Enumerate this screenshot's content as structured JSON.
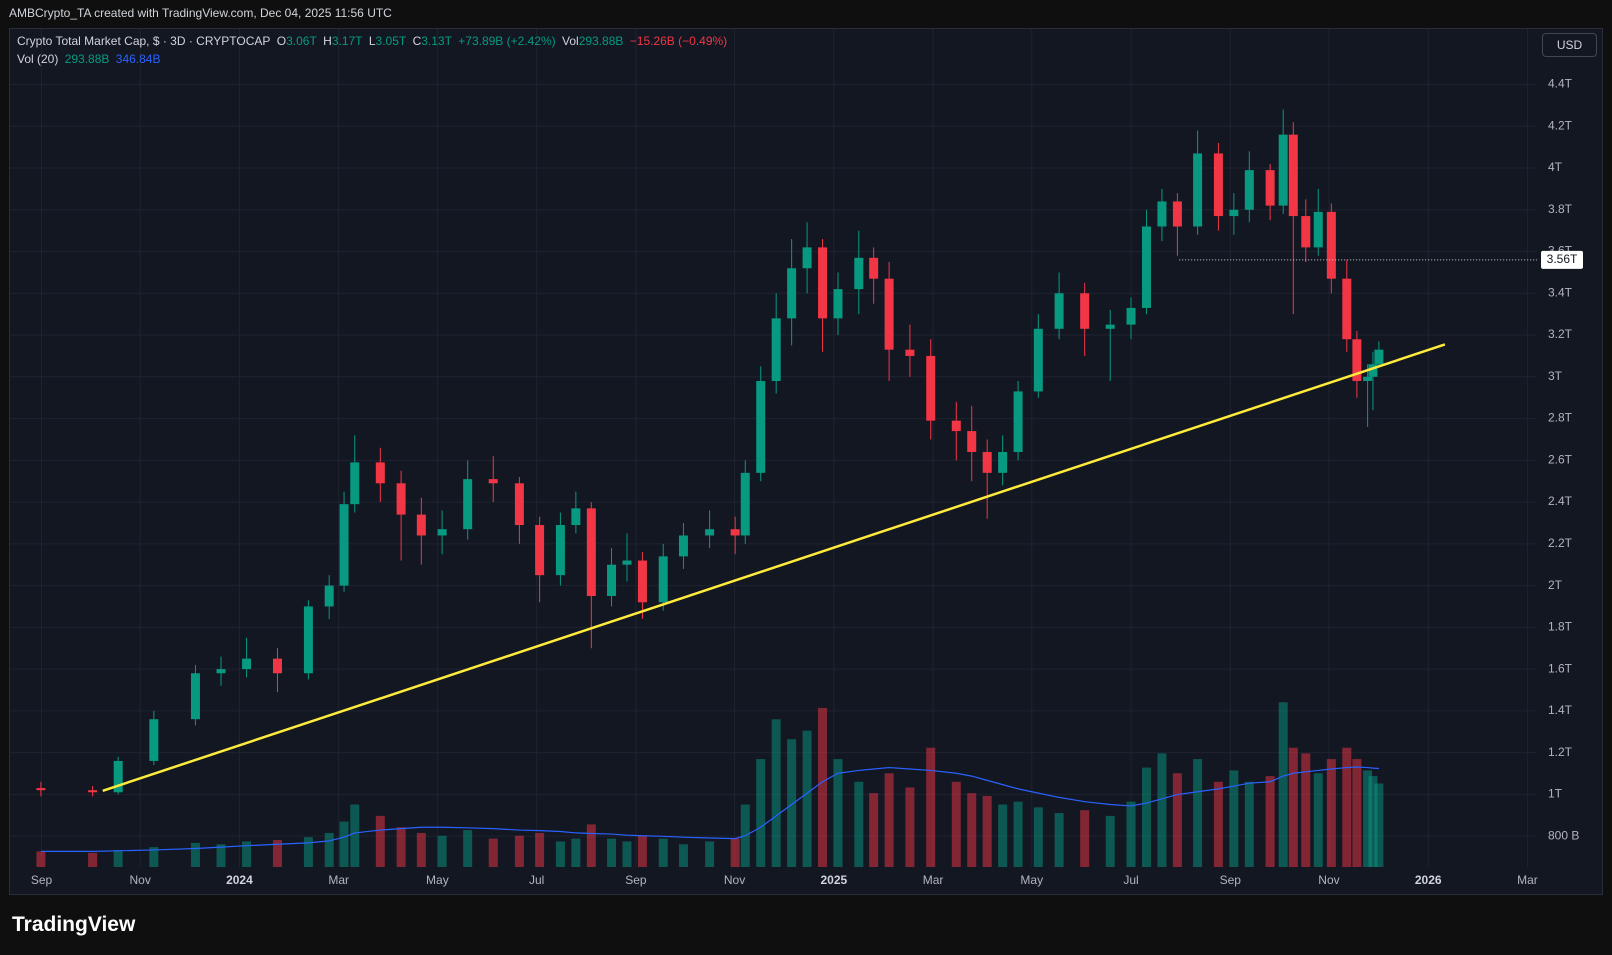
{
  "attribution": "AMBCrypto_TA created with TradingView.com, Dec 04, 2025 11:56 UTC",
  "brand": "TradingView",
  "chart_data": {
    "type": "candlestick",
    "title": "Crypto Total Market Cap, $ · 3D · CRYPTOCAP",
    "legend": {
      "o_label": "O",
      "open": "3.06T",
      "h_label": "H",
      "high": "3.17T",
      "l_label": "L",
      "low": "3.05T",
      "c_label": "C",
      "close": "3.13T",
      "change": "+73.89B (+2.42%)",
      "vol_label": "Vol",
      "vol": "293.88B",
      "vol_change": "−15.26B (−0.49%)",
      "vol_ma_label": "Vol (20)",
      "vol_ma_1": "293.88B",
      "vol_ma_2": "346.84B"
    },
    "currency": "USD",
    "x": [
      2023.666,
      2023.753,
      2023.796,
      2023.856,
      2023.926,
      2023.969,
      2024.012,
      2024.064,
      2024.116,
      2024.151,
      2024.176,
      2024.194,
      2024.237,
      2024.272,
      2024.306,
      2024.341,
      2024.384,
      2024.427,
      2024.471,
      2024.505,
      2024.54,
      2024.566,
      2024.592,
      2024.626,
      2024.652,
      2024.678,
      2024.713,
      2024.747,
      2024.791,
      2024.834,
      2024.851,
      2024.877,
      2024.903,
      2024.929,
      2024.955,
      2024.981,
      2025.007,
      2025.042,
      2025.067,
      2025.093,
      2025.128,
      2025.163,
      2025.206,
      2025.232,
      2025.258,
      2025.284,
      2025.31,
      2025.344,
      2025.379,
      2025.422,
      2025.465,
      2025.5,
      2025.526,
      2025.552,
      2025.578,
      2025.612,
      2025.647,
      2025.673,
      2025.699,
      2025.734,
      2025.756,
      2025.773,
      2025.794,
      2025.815,
      2025.837,
      2025.863,
      2025.88,
      2025.898,
      2025.907,
      2025.917
    ],
    "ohlc": [
      [
        1.03,
        1.06,
        0.99,
        1.02
      ],
      [
        1.02,
        1.04,
        0.99,
        1.01
      ],
      [
        1.01,
        1.18,
        1.0,
        1.16
      ],
      [
        1.16,
        1.4,
        1.14,
        1.36
      ],
      [
        1.36,
        1.62,
        1.33,
        1.58
      ],
      [
        1.58,
        1.66,
        1.52,
        1.6
      ],
      [
        1.6,
        1.75,
        1.56,
        1.65
      ],
      [
        1.65,
        1.7,
        1.49,
        1.58
      ],
      [
        1.58,
        1.93,
        1.55,
        1.9
      ],
      [
        1.9,
        2.05,
        1.84,
        2.0
      ],
      [
        2.0,
        2.45,
        1.97,
        2.39
      ],
      [
        2.39,
        2.72,
        2.35,
        2.59
      ],
      [
        2.59,
        2.66,
        2.4,
        2.49
      ],
      [
        2.49,
        2.55,
        2.12,
        2.34
      ],
      [
        2.34,
        2.42,
        2.1,
        2.24
      ],
      [
        2.24,
        2.36,
        2.15,
        2.27
      ],
      [
        2.27,
        2.6,
        2.22,
        2.51
      ],
      [
        2.51,
        2.62,
        2.4,
        2.49
      ],
      [
        2.49,
        2.52,
        2.2,
        2.29
      ],
      [
        2.29,
        2.33,
        1.92,
        2.05
      ],
      [
        2.05,
        2.35,
        2.0,
        2.29
      ],
      [
        2.29,
        2.45,
        2.25,
        2.37
      ],
      [
        2.37,
        2.4,
        1.7,
        1.95
      ],
      [
        1.95,
        2.18,
        1.9,
        2.1
      ],
      [
        2.1,
        2.25,
        2.02,
        2.12
      ],
      [
        2.12,
        2.16,
        1.84,
        1.92
      ],
      [
        1.92,
        2.2,
        1.88,
        2.14
      ],
      [
        2.14,
        2.3,
        2.08,
        2.24
      ],
      [
        2.24,
        2.36,
        2.18,
        2.27
      ],
      [
        2.27,
        2.33,
        2.15,
        2.24
      ],
      [
        2.24,
        2.6,
        2.2,
        2.54
      ],
      [
        2.54,
        3.05,
        2.5,
        2.98
      ],
      [
        2.98,
        3.4,
        2.92,
        3.28
      ],
      [
        3.28,
        3.66,
        3.15,
        3.52
      ],
      [
        3.52,
        3.74,
        3.4,
        3.62
      ],
      [
        3.62,
        3.66,
        3.12,
        3.28
      ],
      [
        3.28,
        3.5,
        3.2,
        3.42
      ],
      [
        3.42,
        3.7,
        3.3,
        3.57
      ],
      [
        3.57,
        3.62,
        3.35,
        3.47
      ],
      [
        3.47,
        3.55,
        2.98,
        3.13
      ],
      [
        3.13,
        3.25,
        3.0,
        3.1
      ],
      [
        3.1,
        3.18,
        2.7,
        2.79
      ],
      [
        2.79,
        2.88,
        2.6,
        2.74
      ],
      [
        2.74,
        2.86,
        2.5,
        2.64
      ],
      [
        2.64,
        2.7,
        2.32,
        2.54
      ],
      [
        2.54,
        2.72,
        2.48,
        2.64
      ],
      [
        2.64,
        2.98,
        2.6,
        2.93
      ],
      [
        2.93,
        3.3,
        2.9,
        3.23
      ],
      [
        3.23,
        3.5,
        3.18,
        3.4
      ],
      [
        3.4,
        3.45,
        3.1,
        3.23
      ],
      [
        3.23,
        3.32,
        2.98,
        3.25
      ],
      [
        3.25,
        3.38,
        3.18,
        3.33
      ],
      [
        3.33,
        3.8,
        3.3,
        3.72
      ],
      [
        3.72,
        3.9,
        3.65,
        3.84
      ],
      [
        3.84,
        3.88,
        3.58,
        3.72
      ],
      [
        3.72,
        4.18,
        3.68,
        4.07
      ],
      [
        4.07,
        4.12,
        3.7,
        3.77
      ],
      [
        3.77,
        3.88,
        3.68,
        3.8
      ],
      [
        3.8,
        4.08,
        3.74,
        3.99
      ],
      [
        3.99,
        4.02,
        3.75,
        3.82
      ],
      [
        3.82,
        4.28,
        3.78,
        4.16
      ],
      [
        4.16,
        4.22,
        3.3,
        3.77
      ],
      [
        3.77,
        3.85,
        3.55,
        3.62
      ],
      [
        3.62,
        3.9,
        3.58,
        3.79
      ],
      [
        3.79,
        3.83,
        3.4,
        3.47
      ],
      [
        3.47,
        3.56,
        3.12,
        3.18
      ],
      [
        3.18,
        3.22,
        2.9,
        2.98
      ],
      [
        2.98,
        3.06,
        2.76,
        3.0
      ],
      [
        3.0,
        3.12,
        2.84,
        3.06
      ],
      [
        3.06,
        3.17,
        3.05,
        3.13
      ]
    ],
    "volume": [
      55,
      50,
      60,
      70,
      85,
      80,
      90,
      95,
      105,
      120,
      160,
      220,
      180,
      140,
      120,
      110,
      130,
      100,
      110,
      120,
      90,
      100,
      150,
      100,
      90,
      110,
      100,
      80,
      90,
      100,
      220,
      380,
      520,
      450,
      480,
      560,
      380,
      300,
      260,
      330,
      280,
      420,
      300,
      260,
      250,
      220,
      230,
      210,
      190,
      200,
      180,
      230,
      350,
      400,
      330,
      380,
      300,
      340,
      300,
      320,
      580,
      420,
      400,
      330,
      380,
      420,
      380,
      340,
      320,
      293.88
    ],
    "volume_ma": [
      55,
      55,
      57,
      60,
      65,
      70,
      75,
      80,
      85,
      92,
      105,
      120,
      130,
      135,
      140,
      140,
      138,
      135,
      130,
      128,
      125,
      120,
      118,
      116,
      112,
      110,
      108,
      105,
      102,
      100,
      110,
      140,
      180,
      220,
      260,
      300,
      330,
      340,
      345,
      350,
      345,
      340,
      330,
      320,
      305,
      290,
      275,
      260,
      245,
      230,
      220,
      215,
      225,
      240,
      255,
      265,
      275,
      285,
      295,
      300,
      320,
      330,
      335,
      340,
      345,
      350,
      352,
      350,
      348,
      346.84
    ],
    "up_color": "#089981",
    "down_color": "#f23645",
    "volume_ma_color": "#2962ff",
    "xlim": [
      2023.614,
      2026.183
    ],
    "xticks": [
      {
        "value": 2023.667,
        "label": "Sep"
      },
      {
        "value": 2023.833,
        "label": "Nov"
      },
      {
        "value": 2024,
        "label": "2024"
      },
      {
        "value": 2024.167,
        "label": "Mar"
      },
      {
        "value": 2024.333,
        "label": "May"
      },
      {
        "value": 2024.5,
        "label": "Jul"
      },
      {
        "value": 2024.667,
        "label": "Sep"
      },
      {
        "value": 2024.833,
        "label": "Nov"
      },
      {
        "value": 2025,
        "label": "2025"
      },
      {
        "value": 2025.167,
        "label": "Mar"
      },
      {
        "value": 2025.333,
        "label": "May"
      },
      {
        "value": 2025.5,
        "label": "Jul"
      },
      {
        "value": 2025.667,
        "label": "Sep"
      },
      {
        "value": 2025.833,
        "label": "Nov"
      },
      {
        "value": 2026,
        "label": "2026"
      },
      {
        "value": 2026.167,
        "label": "Mar"
      }
    ],
    "ylim": [
      0.652,
      4.666
    ],
    "yticks": [
      {
        "value": 0.8,
        "label": "800 B"
      },
      {
        "value": 1,
        "label": "1T"
      },
      {
        "value": 1.2,
        "label": "1.2T"
      },
      {
        "value": 1.4,
        "label": "1.4T"
      },
      {
        "value": 1.6,
        "label": "1.6T"
      },
      {
        "value": 1.8,
        "label": "1.8T"
      },
      {
        "value": 2,
        "label": "2T"
      },
      {
        "value": 2.2,
        "label": "2.2T"
      },
      {
        "value": 2.4,
        "label": "2.4T"
      },
      {
        "value": 2.6,
        "label": "2.6T"
      },
      {
        "value": 2.8,
        "label": "2.8T"
      },
      {
        "value": 3,
        "label": "3T"
      },
      {
        "value": 3.2,
        "label": "3.2T"
      },
      {
        "value": 3.4,
        "label": "3.4T"
      },
      {
        "value": 3.6,
        "label": "3.6T"
      },
      {
        "value": 3.8,
        "label": "3.8T"
      },
      {
        "value": 4,
        "label": "4T"
      },
      {
        "value": 4.2,
        "label": "4.2T"
      },
      {
        "value": 4.4,
        "label": "4.4T"
      }
    ],
    "y2lim": [
      0,
      2950
    ],
    "grid": true,
    "trendline": {
      "x": [
        2023.77,
        2026.028
      ],
      "y": [
        1.017,
        3.155
      ],
      "color": "#ffeb3b"
    },
    "price_line": {
      "value": 3.56,
      "label": "3.56T",
      "x_start": 2025.581
    }
  }
}
